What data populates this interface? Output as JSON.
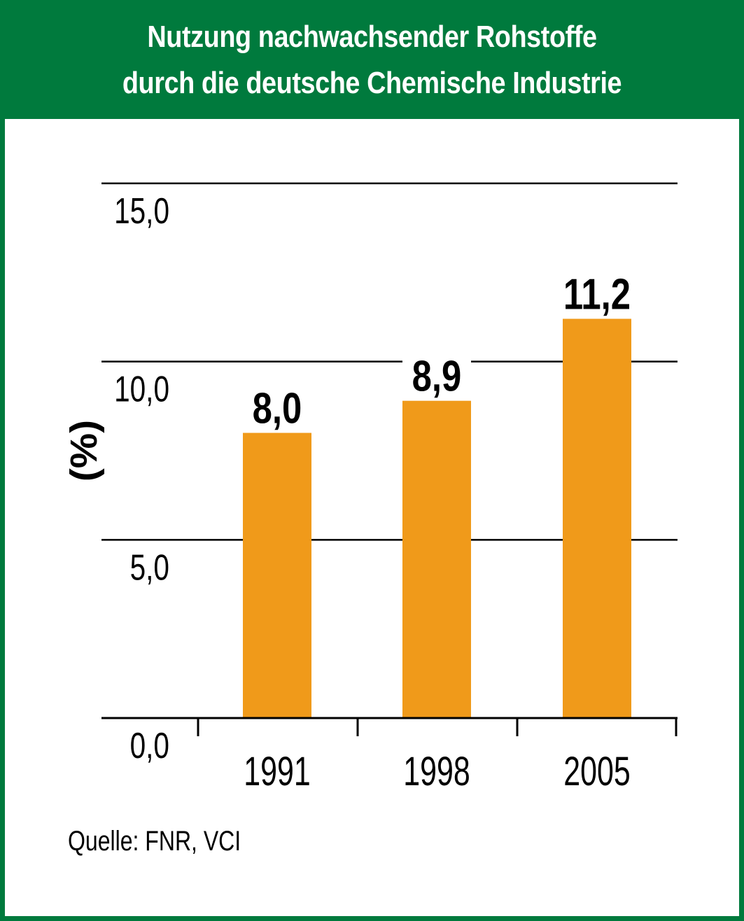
{
  "header": {
    "title_line1": "Nutzung nachwachsender Rohstoffe",
    "title_line2": "durch die deutsche Chemische Industrie"
  },
  "colors": {
    "header_green": "#007a3d",
    "bar_orange": "#f09a1a",
    "grid": "#000000"
  },
  "source": "Quelle: FNR, VCI",
  "chart_data": {
    "type": "bar",
    "categories": [
      "1991",
      "1998",
      "2005"
    ],
    "values": [
      8.0,
      8.9,
      11.2
    ],
    "value_labels": [
      "8,0",
      "8,9",
      "11,2"
    ],
    "ylabel": "(%)",
    "ylim": [
      0,
      15
    ],
    "yticks": [
      0,
      5,
      10,
      15
    ],
    "ytick_labels": [
      "0,0",
      "5,0",
      "10,0",
      "15,0"
    ],
    "grid": true
  }
}
